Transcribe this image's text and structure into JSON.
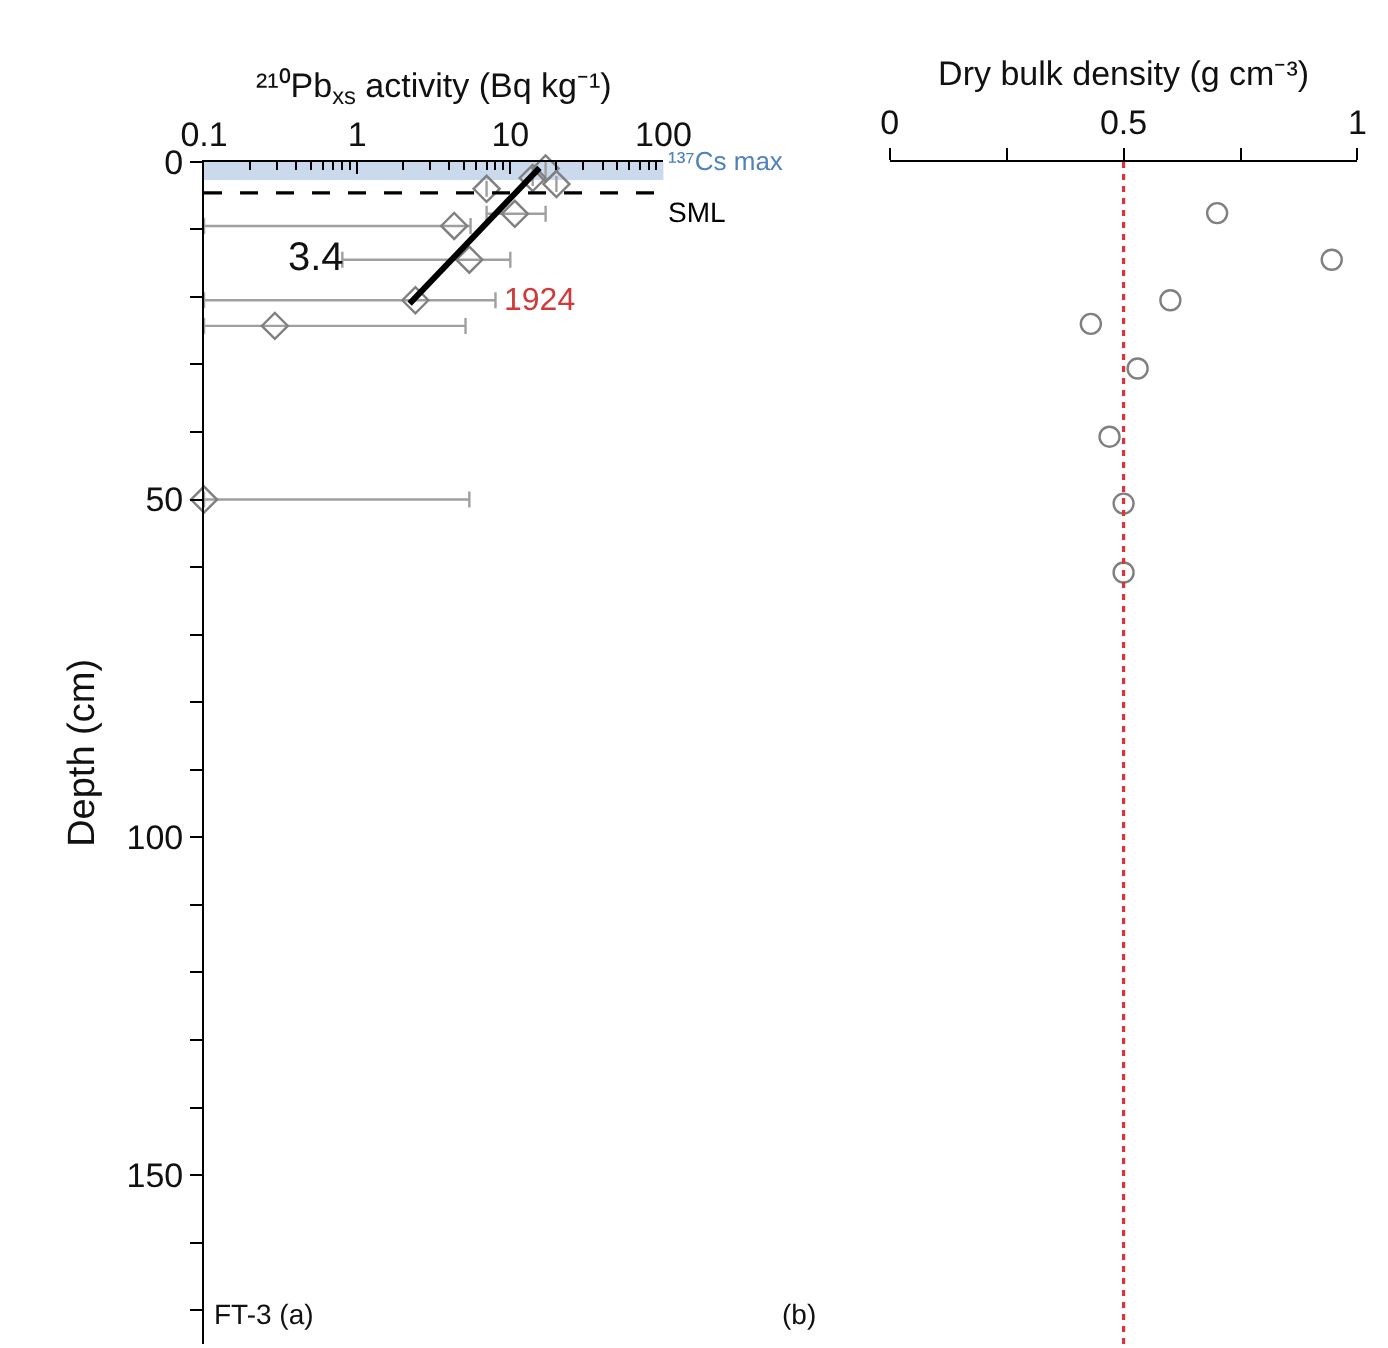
{
  "chart_data": [
    {
      "type": "scatter",
      "xlabel": "²¹⁰Pb$_{xs}$ activity (Bq kg⁻¹)",
      "ylabel": "Depth (cm)",
      "log": "x",
      "xlim": [
        0.1,
        100
      ],
      "xticks": [
        0.1,
        1,
        10,
        100
      ],
      "ylim": [
        175,
        0
      ],
      "yticks": [
        0,
        {
          "value": 10,
          "label": null
        },
        {
          "value": 20,
          "label": null
        },
        {
          "value": 30,
          "label": null
        },
        {
          "value": 40,
          "label": null
        },
        50,
        {
          "value": 60,
          "label": null
        },
        {
          "value": 70,
          "label": null
        },
        {
          "value": 80,
          "label": null
        },
        {
          "value": 90,
          "label": null
        },
        100,
        {
          "value": 110,
          "label": null
        },
        {
          "value": 120,
          "label": null
        },
        {
          "value": 130,
          "label": null
        },
        {
          "value": 140,
          "label": null
        },
        150,
        {
          "value": 160,
          "label": null
        },
        {
          "value": 170,
          "label": null
        }
      ],
      "grid": false,
      "marker": "diamond",
      "series": [
        {
          "color": "#808080",
          "x": [
            17,
            14,
            20,
            7,
            10.7,
            4.3,
            5.4,
            2.4,
            0.29,
            0.1
          ],
          "values": [
            1,
            2.4,
            3.3,
            4,
            7.7,
            9.5,
            14.5,
            20.5,
            24.3,
            50
          ],
          "xerrors": [
            null,
            null,
            null,
            null,
            [
              7,
              17
            ],
            [
              0.1,
              5.5
            ],
            [
              0.8,
              10
            ],
            [
              0.1,
              8
            ],
            [
              0.1,
              5.1
            ],
            [
              0.1,
              5.4
            ]
          ]
        },
        {
          "type": "line",
          "color": "#000000",
          "marker": "none",
          "x": [
            15.5,
            2.2
          ],
          "values": [
            0.9,
            21
          ]
        }
      ],
      "bands": [
        {
          "axis": "y",
          "from": 0,
          "to": 2.7,
          "label": "¹³⁷Cs max",
          "color": "#4f81bd"
        }
      ],
      "ref_lines": [
        {
          "axis": "y",
          "value": 4.6,
          "label": "SML",
          "color": "#000000",
          "line_style": "dashed"
        }
      ],
      "annotations": [
        "3.4",
        "FT-3 (a)",
        {
          "text": "1924",
          "x": 2.4,
          "y": 20.5
        }
      ]
    },
    {
      "type": "scatter",
      "xlabel": "Dry bulk density (g cm⁻³)",
      "xlim": [
        0,
        1
      ],
      "xticks": [
        0,
        {
          "value": 0.25,
          "label": null
        },
        0.5,
        {
          "value": 0.75,
          "label": null
        },
        1
      ],
      "ylim": [
        175,
        0
      ],
      "tick_labels": "x",
      "grid": false,
      "marker": "circle",
      "series": [
        {
          "color": "#808080",
          "x": [
            0.7,
            0.945,
            0.6,
            0.43,
            0.53,
            0.47,
            0.5,
            0.5
          ],
          "values": [
            7.6,
            14.5,
            20.5,
            24,
            30.6,
            40.7,
            50.6,
            60.8
          ]
        }
      ],
      "ref_lines": [
        {
          "axis": "x",
          "value": 0.5,
          "color": "#e0303a",
          "line_style": "dotted"
        }
      ],
      "annotations": [
        "(b)"
      ]
    }
  ]
}
